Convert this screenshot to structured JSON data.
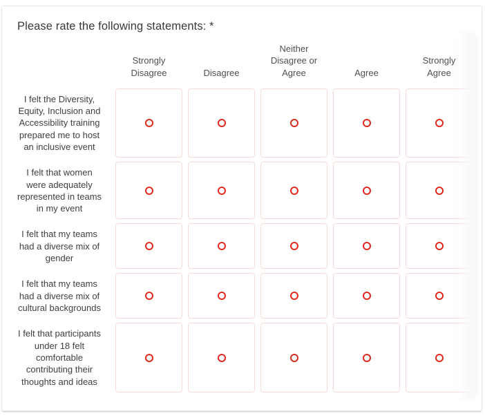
{
  "question": {
    "title": "Please rate the following statements:",
    "required_marker": "*"
  },
  "matrix": {
    "columns": [
      "Strongly\nDisagree",
      "Disagree",
      "Neither\nDisagree or\nAgree",
      "Agree",
      "Strongly\nAgree"
    ],
    "rows": [
      {
        "label": "I felt the Diversity,\nEquity, Inclusion and\nAccessibility  training\nprepared me to host\nan inclusive event",
        "selected": null
      },
      {
        "label": "I felt that women\nwere adequately\nrepresented in teams\nin my event",
        "selected": null
      },
      {
        "label": "I felt that my teams\nhad a diverse mix of\ngender",
        "selected": null
      },
      {
        "label": "I felt that my teams\nhad a diverse mix of\ncultural backgrounds",
        "selected": null
      },
      {
        "label": "I felt that participants\nunder 18 felt\ncomfortable\ncontributing their\nthoughts and ideas",
        "selected": null
      }
    ],
    "radio_state": "unselected"
  },
  "colors": {
    "radio_accent": "#e0281e",
    "cell_border": "#f6dbd5",
    "title_text": "#3a3a3a",
    "header_text": "#4f4f4f",
    "label_text": "#3f3f3f",
    "card_border": "#e7e7e7"
  }
}
